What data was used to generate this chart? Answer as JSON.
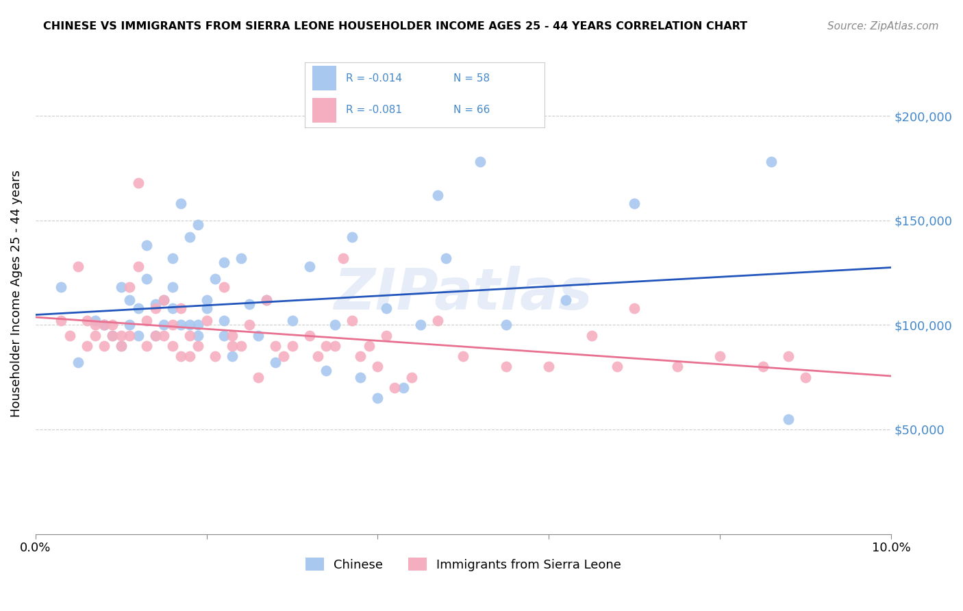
{
  "title": "CHINESE VS IMMIGRANTS FROM SIERRA LEONE HOUSEHOLDER INCOME AGES 25 - 44 YEARS CORRELATION CHART",
  "source": "Source: ZipAtlas.com",
  "ylabel": "Householder Income Ages 25 - 44 years",
  "xlim": [
    0.0,
    0.1
  ],
  "ylim": [
    0,
    230000
  ],
  "xticks": [
    0.0,
    0.02,
    0.04,
    0.06,
    0.08,
    0.1
  ],
  "xticklabels": [
    "0.0%",
    "",
    "",
    "",
    "",
    "10.0%"
  ],
  "ytick_positions": [
    50000,
    100000,
    150000,
    200000
  ],
  "ytick_labels": [
    "$50,000",
    "$100,000",
    "$150,000",
    "$200,000"
  ],
  "chinese_R": "-0.014",
  "chinese_N": "58",
  "sierra_leone_R": "-0.081",
  "sierra_leone_N": "66",
  "chinese_color": "#a8c8f0",
  "sierra_leone_color": "#f5aec0",
  "chinese_line_color": "#2255bb",
  "sierra_leone_line_color": "#e87090",
  "watermark": "ZIPatlas",
  "legend_label_chinese": "Chinese",
  "legend_label_sierra": "Immigrants from Sierra Leone",
  "legend_text_color": "#4488cc",
  "chinese_scatter_x": [
    0.003,
    0.005,
    0.007,
    0.008,
    0.008,
    0.009,
    0.01,
    0.01,
    0.011,
    0.011,
    0.012,
    0.012,
    0.013,
    0.013,
    0.014,
    0.014,
    0.015,
    0.015,
    0.016,
    0.016,
    0.017,
    0.017,
    0.018,
    0.018,
    0.019,
    0.019,
    0.02,
    0.02,
    0.021,
    0.022,
    0.022,
    0.023,
    0.024,
    0.025,
    0.026,
    0.027,
    0.028,
    0.03,
    0.032,
    0.034,
    0.035,
    0.037,
    0.038,
    0.04,
    0.041,
    0.043,
    0.045,
    0.047,
    0.048,
    0.052,
    0.055,
    0.062,
    0.07,
    0.086,
    0.088,
    0.022,
    0.019,
    0.016
  ],
  "chinese_scatter_y": [
    118000,
    82000,
    102000,
    100000,
    100000,
    95000,
    90000,
    118000,
    112000,
    100000,
    108000,
    95000,
    138000,
    122000,
    110000,
    95000,
    100000,
    112000,
    132000,
    118000,
    100000,
    158000,
    142000,
    100000,
    95000,
    100000,
    108000,
    112000,
    122000,
    102000,
    95000,
    85000,
    132000,
    110000,
    95000,
    112000,
    82000,
    102000,
    128000,
    78000,
    100000,
    142000,
    75000,
    65000,
    108000,
    70000,
    100000,
    162000,
    132000,
    178000,
    100000,
    112000,
    158000,
    178000,
    55000,
    130000,
    148000,
    108000
  ],
  "sierra_scatter_x": [
    0.003,
    0.004,
    0.005,
    0.006,
    0.006,
    0.007,
    0.007,
    0.008,
    0.008,
    0.009,
    0.009,
    0.01,
    0.01,
    0.011,
    0.011,
    0.012,
    0.012,
    0.013,
    0.013,
    0.014,
    0.014,
    0.015,
    0.015,
    0.016,
    0.016,
    0.017,
    0.017,
    0.018,
    0.018,
    0.019,
    0.02,
    0.021,
    0.022,
    0.023,
    0.023,
    0.024,
    0.025,
    0.026,
    0.027,
    0.028,
    0.029,
    0.03,
    0.032,
    0.033,
    0.034,
    0.035,
    0.036,
    0.037,
    0.038,
    0.039,
    0.04,
    0.041,
    0.042,
    0.044,
    0.047,
    0.05,
    0.055,
    0.06,
    0.065,
    0.068,
    0.07,
    0.075,
    0.08,
    0.085,
    0.088,
    0.09
  ],
  "sierra_scatter_y": [
    102000,
    95000,
    128000,
    90000,
    102000,
    100000,
    95000,
    100000,
    90000,
    95000,
    100000,
    90000,
    95000,
    95000,
    118000,
    168000,
    128000,
    102000,
    90000,
    108000,
    95000,
    112000,
    95000,
    100000,
    90000,
    85000,
    108000,
    95000,
    85000,
    90000,
    102000,
    85000,
    118000,
    95000,
    90000,
    90000,
    100000,
    75000,
    112000,
    90000,
    85000,
    90000,
    95000,
    85000,
    90000,
    90000,
    132000,
    102000,
    85000,
    90000,
    80000,
    95000,
    70000,
    75000,
    102000,
    85000,
    80000,
    80000,
    95000,
    80000,
    108000,
    80000,
    85000,
    80000,
    85000,
    75000
  ]
}
